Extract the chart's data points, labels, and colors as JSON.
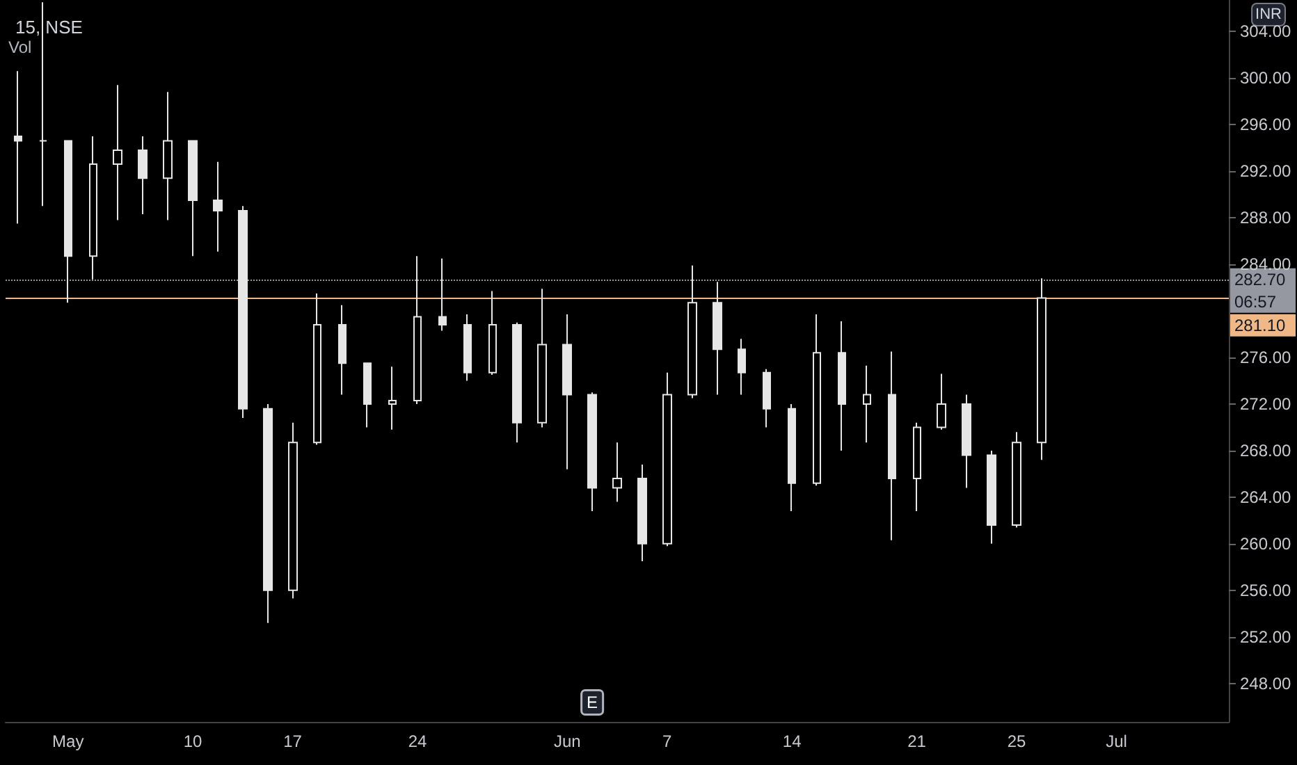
{
  "chart_data": {
    "type": "candlestick",
    "title": "15, NSE",
    "color": "#e6e6e6",
    "categories": [
      null,
      null,
      "May",
      null,
      null,
      null,
      null,
      "10",
      null,
      null,
      null,
      "17",
      null,
      null,
      null,
      null,
      "24",
      null,
      null,
      null,
      null,
      null,
      "Jun",
      null,
      null,
      null,
      "7",
      null,
      null,
      null,
      null,
      "14",
      null,
      null,
      null,
      null,
      "21",
      null,
      null,
      null,
      "25",
      null,
      null,
      null,
      "Jul",
      null,
      null,
      null,
      null
    ],
    "ohlc": [
      [
        295.0,
        300.6,
        287.5,
        294.6
      ],
      [
        294.6,
        306.5,
        289.0,
        294.6
      ],
      [
        294.6,
        294.6,
        280.7,
        284.7
      ],
      [
        284.7,
        295.0,
        282.7,
        292.6
      ],
      [
        292.6,
        299.4,
        287.8,
        293.8
      ],
      [
        293.8,
        295.0,
        288.3,
        291.4
      ],
      [
        291.4,
        298.8,
        287.8,
        294.6
      ],
      [
        294.6,
        294.6,
        284.7,
        289.5
      ],
      [
        289.5,
        292.8,
        285.1,
        288.6
      ],
      [
        288.6,
        289.0,
        270.8,
        271.6
      ],
      [
        271.6,
        272.0,
        253.2,
        256.0
      ],
      [
        256.0,
        270.4,
        255.3,
        268.7
      ],
      [
        268.7,
        281.5,
        268.5,
        278.8
      ],
      [
        278.8,
        280.5,
        272.8,
        275.5
      ],
      [
        275.5,
        275.5,
        270.0,
        272.0
      ],
      [
        272.0,
        275.2,
        269.8,
        272.3
      ],
      [
        272.3,
        284.7,
        272.0,
        279.5
      ],
      [
        279.5,
        284.5,
        278.3,
        278.8
      ],
      [
        278.8,
        279.7,
        274.0,
        274.7
      ],
      [
        274.7,
        281.7,
        274.5,
        278.8
      ],
      [
        278.8,
        279.0,
        268.7,
        270.4
      ],
      [
        270.4,
        281.9,
        270.0,
        277.1
      ],
      [
        277.1,
        279.7,
        266.4,
        272.8
      ],
      [
        272.8,
        273.0,
        262.8,
        264.8
      ],
      [
        264.8,
        268.7,
        263.6,
        265.6
      ],
      [
        265.6,
        266.8,
        258.5,
        260.0
      ],
      [
        260.0,
        274.7,
        259.8,
        272.8
      ],
      [
        272.8,
        283.9,
        272.5,
        280.7
      ],
      [
        280.7,
        282.5,
        272.8,
        276.7
      ],
      [
        276.7,
        277.6,
        272.8,
        274.7
      ],
      [
        274.7,
        275.0,
        270.0,
        271.6
      ],
      [
        271.6,
        272.0,
        262.8,
        265.2
      ],
      [
        265.2,
        279.7,
        265.0,
        276.4
      ],
      [
        276.4,
        279.1,
        268.0,
        272.0
      ],
      [
        272.0,
        275.3,
        268.7,
        272.8
      ],
      [
        272.8,
        276.5,
        260.3,
        265.6
      ],
      [
        265.6,
        270.4,
        262.8,
        270.0
      ],
      [
        270.0,
        274.6,
        269.8,
        272.0
      ],
      [
        272.0,
        272.8,
        264.8,
        267.6
      ],
      [
        267.6,
        268.0,
        260.0,
        261.6
      ],
      [
        261.6,
        269.6,
        261.4,
        268.7
      ],
      [
        268.7,
        282.8,
        267.2,
        281.1
      ],
      null,
      null,
      null,
      null,
      null,
      null,
      null
    ],
    "ylim": [
      244.7,
      306.7
    ],
    "yticks": [
      {
        "value": 248,
        "label": "248.00"
      },
      {
        "value": 252,
        "label": "252.00"
      },
      {
        "value": 256,
        "label": "256.00"
      },
      {
        "value": 260,
        "label": "260.00"
      },
      {
        "value": 264,
        "label": "264.00"
      },
      {
        "value": 268,
        "label": "268.00"
      },
      {
        "value": 272,
        "label": "272.00"
      },
      {
        "value": 276,
        "label": "276.00"
      },
      {
        "value": 284,
        "label": "284.00"
      },
      {
        "value": 288,
        "label": "288.00"
      },
      {
        "value": 292,
        "label": "292.00"
      },
      {
        "value": 296,
        "label": "296.00"
      },
      {
        "value": 300,
        "label": "300.00"
      },
      {
        "value": 304,
        "label": "304.00"
      }
    ],
    "ref_lines": [
      {
        "axis": "y",
        "value": 282.7,
        "label": "282.70",
        "color": "#9598a1",
        "line_style": "dotted"
      },
      {
        "axis": "y",
        "value": 281.1,
        "label": "281.10",
        "color": "#f0b887",
        "line_style": "solid"
      }
    ],
    "annotations": [
      "Vol",
      "INR",
      "06:57",
      "E"
    ],
    "grid": false
  }
}
